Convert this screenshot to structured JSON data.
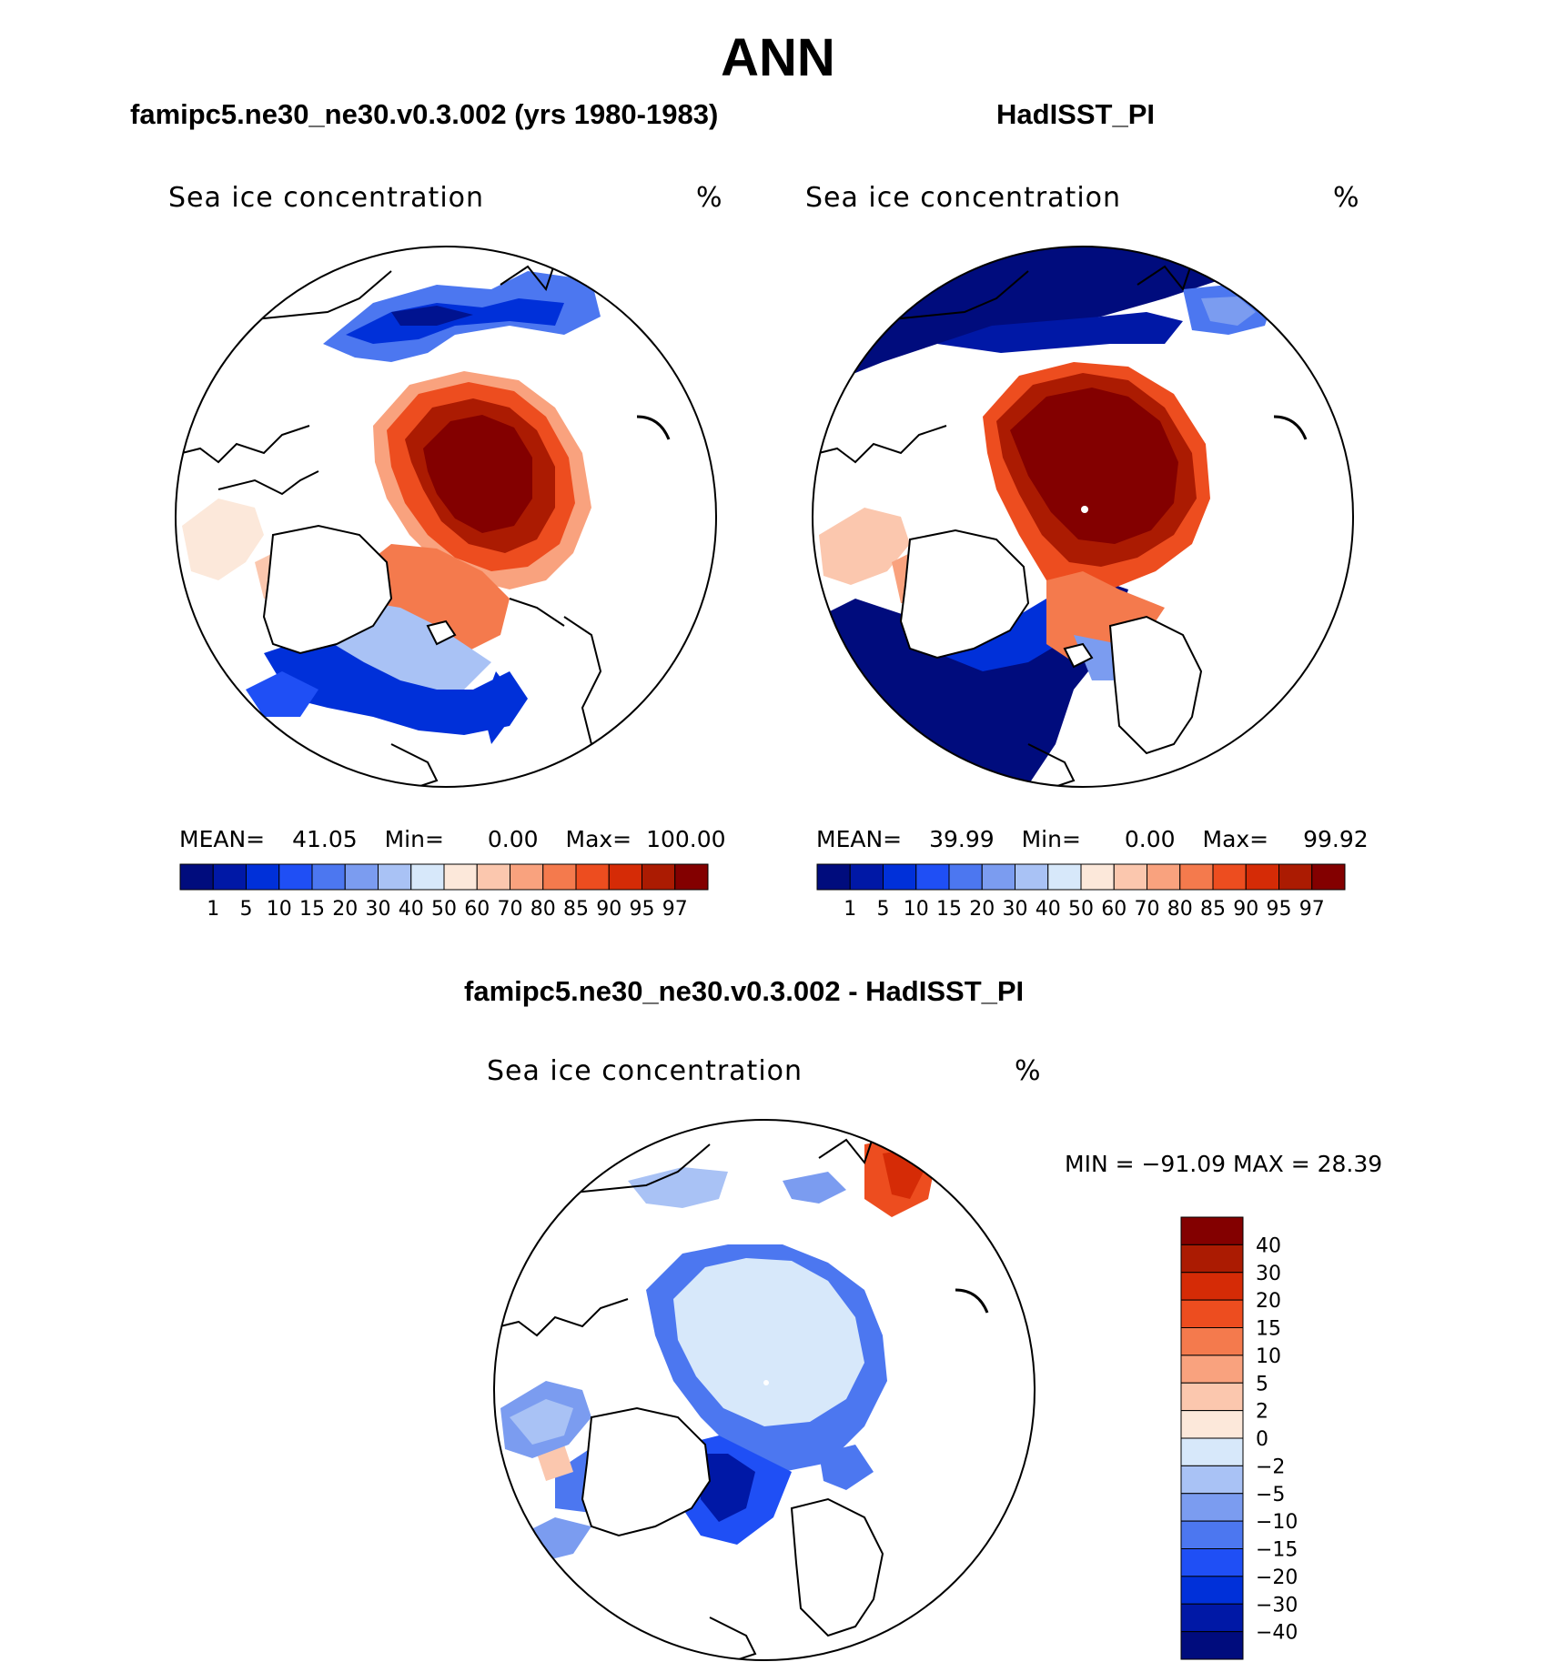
{
  "main_title": "ANN",
  "colors": {
    "seq": [
      "#000c7d",
      "#0018a6",
      "#0030d9",
      "#1f4ff5",
      "#4c77f0",
      "#7b9cf0",
      "#a9c2f5",
      "#d7e8fa",
      "#fce8da",
      "#fbc7ae",
      "#f9a27e",
      "#f47a4d",
      "#ed4d1f",
      "#d52b06",
      "#ab1b02",
      "#830000"
    ],
    "diff": [
      "#830000",
      "#ab1b02",
      "#d52b06",
      "#ed4d1f",
      "#f47a4d",
      "#f9a27e",
      "#fbc7ae",
      "#fce8da",
      "#d7e8fa",
      "#a9c2f5",
      "#7b9cf0",
      "#4c77f0",
      "#1f4ff5",
      "#0030d9",
      "#0018a6",
      "#000c7d"
    ]
  },
  "panels": [
    {
      "id": "model",
      "subtitle": "famipc5.ne30_ne30.v0.3.002 (yrs 1980-1983)",
      "field_label": "Sea ice concentration",
      "units": "%",
      "stats": {
        "mean_label": "MEAN=",
        "mean": "41.05",
        "min_label": "Min=",
        "min": "0.00",
        "max_label": "Max=",
        "max": "100.00"
      },
      "colorbar_ticks": [
        "1",
        "5",
        "10",
        "15",
        "20",
        "30",
        "40",
        "50",
        "60",
        "70",
        "80",
        "85",
        "90",
        "95",
        "97"
      ]
    },
    {
      "id": "obs",
      "subtitle": "HadISST_PI",
      "field_label": "Sea ice concentration",
      "units": "%",
      "stats": {
        "mean_label": "MEAN=",
        "mean": "39.99",
        "min_label": "Min=",
        "min": "0.00",
        "max_label": "Max=",
        "max": "99.92"
      },
      "colorbar_ticks": [
        "1",
        "5",
        "10",
        "15",
        "20",
        "30",
        "40",
        "50",
        "60",
        "70",
        "80",
        "85",
        "90",
        "95",
        "97"
      ]
    },
    {
      "id": "diff",
      "subtitle": "famipc5.ne30_ne30.v0.3.002 - HadISST_PI",
      "field_label": "Sea ice concentration",
      "units": "%",
      "stats_line": "MIN  =  −91.09  MAX  =    28.39",
      "colorbar_ticks": [
        "40",
        "30",
        "20",
        "15",
        "10",
        "5",
        "2",
        "0",
        "−2",
        "−5",
        "−10",
        "−15",
        "−20",
        "−30",
        "−40"
      ]
    }
  ]
}
